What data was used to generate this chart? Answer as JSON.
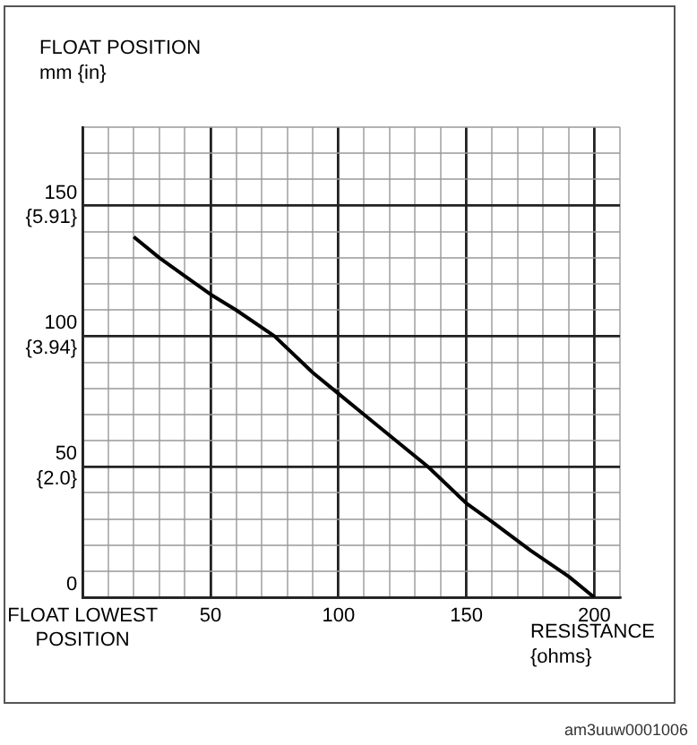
{
  "chart_data": {
    "type": "line",
    "xlabel": "RESISTANCE\n{ohms}",
    "ylabel": "FLOAT POSITION\nmm {in}",
    "x": [
      20,
      30,
      40,
      50,
      60,
      75,
      90,
      100,
      110,
      125,
      135,
      150,
      160,
      175,
      190,
      200
    ],
    "series": [
      {
        "color": "#000000",
        "values": [
          138,
          130,
          123,
          116,
          110,
          100,
          86,
          78,
          70,
          58,
          50,
          36,
          29,
          18,
          8,
          0
        ]
      }
    ],
    "xlim": [
      0,
      210
    ],
    "ylim": [
      0,
      180
    ],
    "xticks": [
      {
        "value": 0,
        "label": "FLOAT LOWEST\nPOSITION"
      },
      {
        "value": 10,
        "label": null
      },
      {
        "value": 20,
        "label": null
      },
      {
        "value": 30,
        "label": null
      },
      {
        "value": 40,
        "label": null
      },
      50,
      {
        "value": 60,
        "label": null
      },
      {
        "value": 70,
        "label": null
      },
      {
        "value": 80,
        "label": null
      },
      {
        "value": 90,
        "label": null
      },
      100,
      {
        "value": 110,
        "label": null
      },
      {
        "value": 120,
        "label": null
      },
      {
        "value": 130,
        "label": null
      },
      {
        "value": 140,
        "label": null
      },
      150,
      {
        "value": 160,
        "label": null
      },
      {
        "value": 170,
        "label": null
      },
      {
        "value": 180,
        "label": null
      },
      {
        "value": 190,
        "label": null
      },
      200,
      {
        "value": 210,
        "label": null
      }
    ],
    "yticks": [
      0,
      {
        "value": 10,
        "label": null
      },
      {
        "value": 20,
        "label": null
      },
      {
        "value": 30,
        "label": null
      },
      {
        "value": 40,
        "label": null
      },
      50,
      {
        "value": 60,
        "label": null
      },
      {
        "value": 70,
        "label": null
      },
      {
        "value": 80,
        "label": null
      },
      {
        "value": 90,
        "label": null
      },
      100,
      {
        "value": 110,
        "label": null
      },
      {
        "value": 120,
        "label": null
      },
      {
        "value": 130,
        "label": null
      },
      {
        "value": 140,
        "label": null
      },
      150,
      {
        "value": 160,
        "label": null
      },
      {
        "value": 170,
        "label": null
      },
      {
        "value": 180,
        "label": null
      }
    ],
    "y2lim": [
      0,
      7.09
    ],
    "y2ticks": [
      {
        "value": 1.97,
        "label": "{2.0}"
      },
      {
        "value": 3.94,
        "label": "{3.94}"
      },
      {
        "value": 5.91,
        "label": "{5.91}"
      }
    ],
    "grid": true,
    "legend": false,
    "marker": "none",
    "line_style": "solid",
    "annotations": [
      "am3uuw0001006"
    ]
  }
}
